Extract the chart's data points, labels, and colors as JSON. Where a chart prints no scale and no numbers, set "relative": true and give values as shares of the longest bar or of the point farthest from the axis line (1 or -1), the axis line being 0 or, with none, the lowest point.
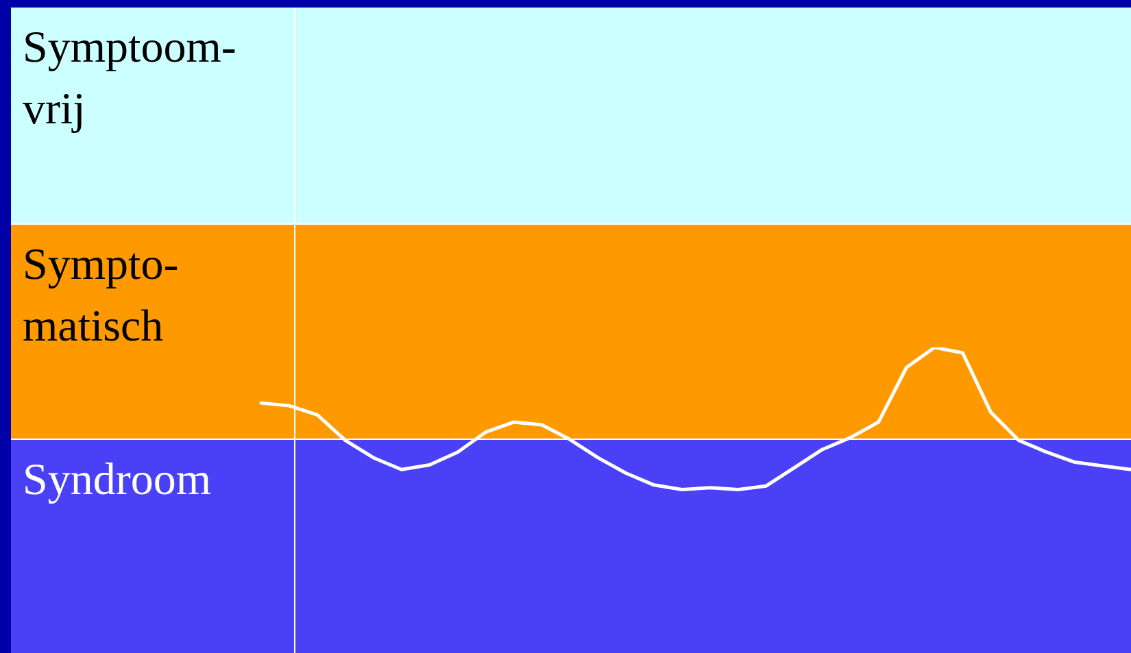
{
  "chart_data": {
    "type": "line",
    "relative": true,
    "categories": [
      null,
      null,
      null,
      null,
      null,
      null,
      null,
      null,
      null,
      null,
      null,
      null,
      null,
      null,
      null,
      null,
      null,
      null,
      null,
      null,
      null,
      null,
      null,
      null,
      null,
      null,
      null,
      null,
      null,
      null,
      null,
      null
    ],
    "series": [
      {
        "color": "#ffffff",
        "values": [
          0.39,
          0.36,
          0.26,
          -0.02,
          -0.21,
          -0.34,
          -0.29,
          -0.15,
          0.07,
          0.18,
          0.15,
          -0.01,
          -0.21,
          -0.38,
          -0.51,
          -0.56,
          -0.54,
          -0.56,
          -0.52,
          -0.32,
          -0.12,
          0.01,
          0.18,
          0.78,
          1.0,
          0.94,
          0.29,
          -0.02,
          -0.15,
          -0.26,
          -0.3,
          -0.34
        ]
      }
    ],
    "annotations": [
      "Symptoom-\nvrij",
      "Sympto-\nmatisch",
      "Syndroom"
    ],
    "legend": false,
    "marker": "none",
    "line_style": "solid"
  }
}
